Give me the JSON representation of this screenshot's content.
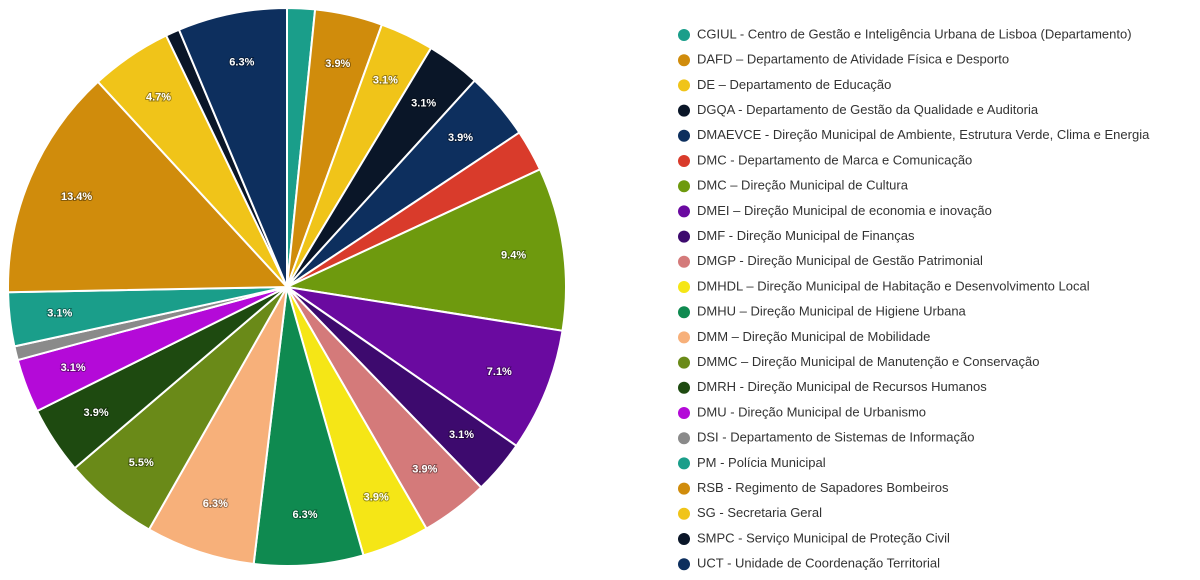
{
  "chart_data": {
    "type": "pie",
    "categories": [
      "CGIUL - Centro de Gestão e Inteligência Urbana de Lisboa (Departamento)",
      "DAFD – Departamento de Atividade Física e Desporto",
      "DE – Departamento de Educação",
      "DGQA - Departamento de Gestão da Qualidade e Auditoria",
      "DMAEVCE - Direção Municipal de Ambiente, Estrutura Verde, Clima e Energia",
      "DMC - Departamento de Marca e Comunicação",
      "DMC – Direção Municipal de Cultura",
      "DMEI – Direção Municipal de economia e inovação",
      "DMF - Direção Municipal de Finanças",
      "DMGP - Direção Municipal de Gestão Patrimonial",
      "DMHDL – Direção Municipal de Habitação e Desenvolvimento Local",
      "DMHU – Direção Municipal de Higiene Urbana",
      "DMM – Direção Municipal de Mobilidade",
      "DMMC – Direção Municipal de Manutenção e Conservação",
      "DMRH - Direção Municipal de Recursos Humanos",
      "DMU - Direção Municipal de Urbanismo",
      "DSI - Departamento de Sistemas de Informação",
      "PM - Polícia Municipal",
      "RSB - Regimento de Sapadores Bombeiros",
      "SG - Secretaria Geral",
      "SMPC - Serviço Municipal de Proteção Civil",
      "UCT - Unidade de Coordenação Territorial"
    ],
    "values": [
      1.6,
      3.9,
      3.1,
      3.1,
      3.9,
      2.4,
      9.4,
      7.1,
      3.1,
      3.9,
      3.9,
      6.3,
      6.3,
      5.5,
      3.9,
      3.1,
      0.8,
      3.1,
      13.4,
      4.7,
      0.8,
      6.3
    ],
    "value_labels": [
      null,
      "3.9%",
      "3.1%",
      "3.1%",
      "3.9%",
      null,
      "9.4%",
      "7.1%",
      "3.1%",
      "3.9%",
      "3.9%",
      "6.3%",
      "6.3%",
      "5.5%",
      "3.9%",
      "3.1%",
      null,
      "3.1%",
      "13.4%",
      "4.7%",
      null,
      "6.3%"
    ],
    "colors": [
      "#1a9e8a",
      "#d08c0c",
      "#f0c419",
      "#0a1628",
      "#0d2f5e",
      "#d93b2b",
      "#6e9a0e",
      "#6a0aa0",
      "#3d0a6e",
      "#d47a7a",
      "#f5e616",
      "#0f8a50",
      "#f7b07a",
      "#6a8a18",
      "#1e4a10",
      "#b40ad8",
      "#8a8a8a",
      "#1a9e8a",
      "#d08c0c",
      "#f0c419",
      "#0a1628",
      "#0d2f5e"
    ],
    "legend": "right"
  }
}
